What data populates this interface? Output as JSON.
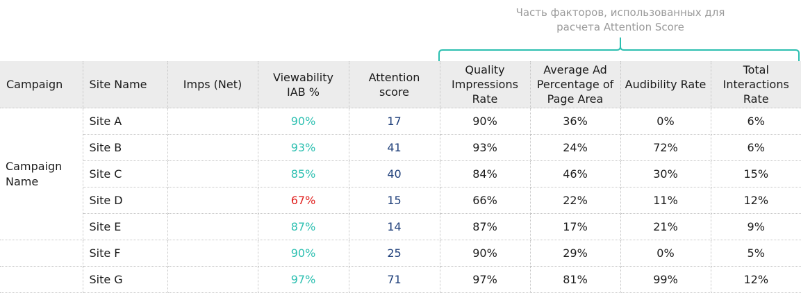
{
  "annotation": {
    "line1": "Часть факторов, использованных для",
    "line2": "расчета Attention Score",
    "bracket_color": "#2bbfb0"
  },
  "colors": {
    "good": "#2bbfb0",
    "bad": "#e0201e",
    "score": "#1f3f7a",
    "header_bg": "#ececec"
  },
  "table": {
    "headers": [
      "Campaign",
      "Site Name",
      "Imps (Net)",
      "Viewability IAB %",
      "Attention score",
      "Quality Impressions Rate",
      "Average Ad Percentage of Page Area",
      "Audibility Rate",
      "Total Interactions Rate"
    ],
    "campaign_name": "Campaign Name",
    "rows": [
      {
        "site": "Site A",
        "imps": "",
        "viewability": "90%",
        "status": "good",
        "attention": "17",
        "quality": "90%",
        "area": "36%",
        "audibility": "0%",
        "interactions": "6%"
      },
      {
        "site": "Site B",
        "imps": "",
        "viewability": "93%",
        "status": "good",
        "attention": "41",
        "quality": "93%",
        "area": "24%",
        "audibility": "72%",
        "interactions": "6%"
      },
      {
        "site": "Site C",
        "imps": "",
        "viewability": "85%",
        "status": "good",
        "attention": "40",
        "quality": "84%",
        "area": "46%",
        "audibility": "30%",
        "interactions": "15%"
      },
      {
        "site": "Site D",
        "imps": "",
        "viewability": "67%",
        "status": "bad",
        "attention": "15",
        "quality": "66%",
        "area": "22%",
        "audibility": "11%",
        "interactions": "12%"
      },
      {
        "site": "Site E",
        "imps": "",
        "viewability": "87%",
        "status": "good",
        "attention": "14",
        "quality": "87%",
        "area": "17%",
        "audibility": "21%",
        "interactions": "9%"
      },
      {
        "site": "Site F",
        "imps": "",
        "viewability": "90%",
        "status": "good",
        "attention": "25",
        "quality": "90%",
        "area": "29%",
        "audibility": "0%",
        "interactions": "5%"
      },
      {
        "site": "Site G",
        "imps": "",
        "viewability": "97%",
        "status": "good",
        "attention": "71",
        "quality": "97%",
        "area": "81%",
        "audibility": "99%",
        "interactions": "12%"
      }
    ]
  }
}
